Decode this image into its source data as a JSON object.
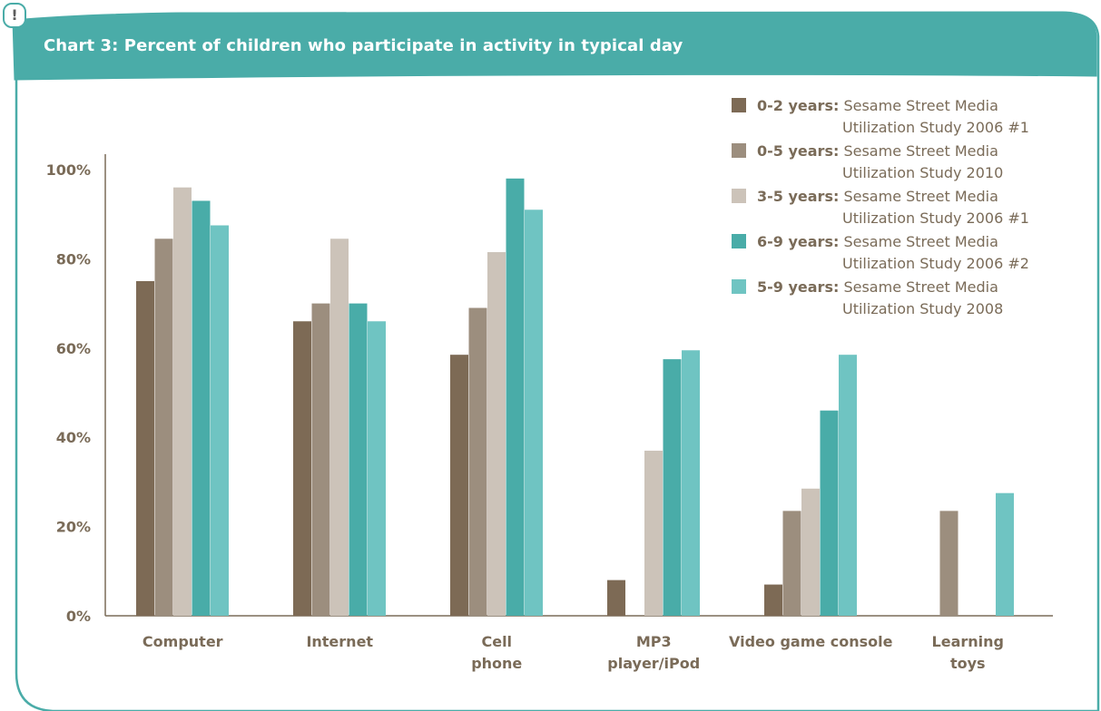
{
  "header": {
    "alert_symbol": "!",
    "title": "Chart 3: Percent of children who participate in activity in typical day"
  },
  "colors": {
    "teal": "#4aaca8",
    "axis": "#7a6b58",
    "series": [
      "#7d6a55",
      "#9c8e7e",
      "#ccc3b9",
      "#49aca8",
      "#6fc4c2"
    ]
  },
  "chart_data": {
    "type": "bar",
    "title": "Chart 3: Percent of children who participate in activity in typical day",
    "xlabel": "",
    "ylabel": "",
    "ylim": [
      0,
      100
    ],
    "yticks": [
      "0%",
      "20%",
      "40%",
      "60%",
      "80%",
      "100%"
    ],
    "grid": false,
    "legend_position": "top-right",
    "categories": [
      [
        "Computer"
      ],
      [
        "Internet"
      ],
      [
        "Cell",
        "phone"
      ],
      [
        "MP3",
        "player/iPod"
      ],
      [
        "Video game console"
      ],
      [
        "Learning",
        "toys"
      ]
    ],
    "series": [
      {
        "name": "0-2 years:",
        "source": "Sesame Street Media Utilization Study 2006 #1",
        "values": [
          75,
          66,
          58.5,
          8,
          7,
          null
        ]
      },
      {
        "name": "0-5 years:",
        "source": "Sesame Street Media Utilization Study 2010",
        "values": [
          84.5,
          70,
          69,
          null,
          23.5,
          23.5
        ]
      },
      {
        "name": "3-5 years:",
        "source": "Sesame Street Media Utilization Study 2006 #1",
        "values": [
          96,
          84.5,
          81.5,
          37,
          28.5,
          null
        ]
      },
      {
        "name": "6-9 years:",
        "source": "Sesame Street Media Utilization Study 2006 #2",
        "values": [
          93,
          70,
          98,
          57.5,
          46,
          null
        ]
      },
      {
        "name": "5-9 years:",
        "source": "Sesame Street Media Utilization Study 2008",
        "values": [
          87.5,
          66,
          91,
          59.5,
          58.5,
          27.5
        ]
      }
    ]
  }
}
